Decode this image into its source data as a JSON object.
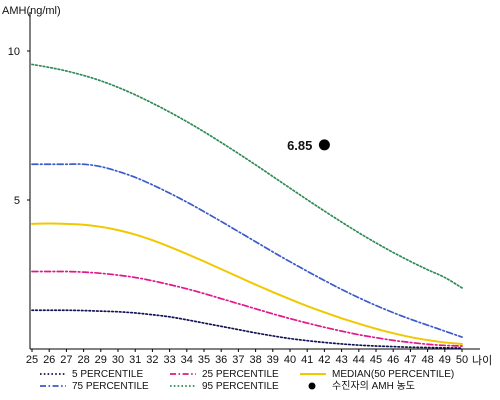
{
  "chart_data": {
    "type": "line",
    "ylabel": "AMH(ng/ml)",
    "xlabel": "나이",
    "x": [
      25,
      26,
      27,
      28,
      29,
      30,
      31,
      32,
      33,
      34,
      35,
      36,
      37,
      38,
      39,
      40,
      41,
      42,
      43,
      44,
      45,
      46,
      47,
      48,
      49,
      50
    ],
    "x_tick_labels": [
      "25",
      "26",
      "27",
      "28",
      "29",
      "30",
      "31",
      "32",
      "33",
      "34",
      "35",
      "36",
      "37",
      "38",
      "39",
      "40",
      "41",
      "42",
      "43",
      "44",
      "45",
      "46",
      "47",
      "48",
      "49",
      "50"
    ],
    "ylim": [
      0,
      11
    ],
    "y_ticks": [
      5,
      10
    ],
    "y_tick_labels": [
      "5",
      "10"
    ],
    "grid": false,
    "legend_position": "bottom",
    "series": [
      {
        "name": "5 PERCENTILE",
        "color": "#111155",
        "style": "dotted",
        "values": [
          1.3,
          1.3,
          1.3,
          1.29,
          1.27,
          1.25,
          1.21,
          1.15,
          1.08,
          0.98,
          0.87,
          0.76,
          0.65,
          0.54,
          0.44,
          0.35,
          0.28,
          0.22,
          0.17,
          0.13,
          0.1,
          0.08,
          0.06,
          0.05,
          0.04,
          0.03
        ]
      },
      {
        "name": "25 PERCENTILE",
        "color": "#e0188c",
        "style": "dashdot",
        "values": [
          2.6,
          2.6,
          2.6,
          2.58,
          2.54,
          2.48,
          2.4,
          2.29,
          2.16,
          2.02,
          1.86,
          1.69,
          1.52,
          1.35,
          1.18,
          1.02,
          0.87,
          0.73,
          0.6,
          0.48,
          0.38,
          0.29,
          0.22,
          0.16,
          0.12,
          0.1
        ]
      },
      {
        "name": "MEDIAN(50 PERCENTILE)",
        "color": "#f0c800",
        "style": "solid",
        "values": [
          4.2,
          4.21,
          4.2,
          4.17,
          4.1,
          3.99,
          3.84,
          3.65,
          3.43,
          3.19,
          2.94,
          2.68,
          2.42,
          2.16,
          1.91,
          1.67,
          1.44,
          1.23,
          1.03,
          0.85,
          0.68,
          0.53,
          0.4,
          0.3,
          0.22,
          0.17
        ]
      },
      {
        "name": "75 PERCENTILE",
        "color": "#3b5bc8",
        "style": "dashdot",
        "values": [
          6.2,
          6.2,
          6.2,
          6.2,
          6.12,
          5.96,
          5.76,
          5.51,
          5.23,
          4.93,
          4.61,
          4.28,
          3.94,
          3.6,
          3.26,
          2.93,
          2.61,
          2.3,
          2.0,
          1.72,
          1.46,
          1.22,
          1.0,
          0.8,
          0.6,
          0.4
        ]
      },
      {
        "name": "95 PERCENTILE",
        "color": "#2e8b57",
        "style": "dotted",
        "values": [
          9.55,
          9.45,
          9.33,
          9.18,
          9.0,
          8.78,
          8.53,
          8.25,
          7.95,
          7.63,
          7.29,
          6.93,
          6.56,
          6.18,
          5.79,
          5.4,
          5.01,
          4.63,
          4.26,
          3.9,
          3.56,
          3.24,
          2.94,
          2.66,
          2.4,
          2.05
        ]
      }
    ],
    "highlight_point": {
      "label": "수진자의 AMH 농도",
      "x": 42,
      "y": 6.85,
      "value_label": "6.85",
      "color": "#000000"
    },
    "legend": [
      {
        "label": "5 PERCENTILE",
        "color": "#111155",
        "style": "dotted",
        "kind": "line"
      },
      {
        "label": "25 PERCENTILE",
        "color": "#e0188c",
        "style": "dashdot",
        "kind": "line"
      },
      {
        "label": "MEDIAN(50 PERCENTILE)",
        "color": "#f0c800",
        "style": "solid",
        "kind": "line"
      },
      {
        "label": "75 PERCENTILE",
        "color": "#3b5bc8",
        "style": "dashdot",
        "kind": "line"
      },
      {
        "label": "95 PERCENTILE",
        "color": "#2e8b57",
        "style": "dotted",
        "kind": "line"
      },
      {
        "label": "수진자의 AMH 농도",
        "color": "#000000",
        "style": "marker",
        "kind": "marker"
      }
    ]
  }
}
